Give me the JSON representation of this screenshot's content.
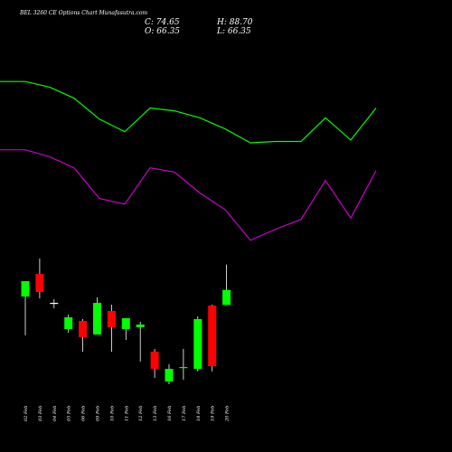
{
  "header": {
    "title": "BEL 3260 CE Options Chart Munafasutra.com",
    "close_label": "C: 74.65",
    "open_label": "O: 66.35",
    "high_label": "H: 88.70",
    "low_label": "L: 66.35"
  },
  "colors": {
    "background": "#000000",
    "up_candle": "#00ff00",
    "down_candle": "#ff0000",
    "wick": "#ffffff",
    "upper_band": "#00ff00",
    "lower_band": "#cc00cc"
  },
  "chart_data": {
    "type": "candlestick",
    "title": "BEL 3260 CE Options Chart Munafasutra.com",
    "categories": [
      "02 Feb",
      "03 Feb",
      "04 Feb",
      "05 Feb",
      "06 Feb",
      "09 Feb",
      "10 Feb",
      "11 Feb",
      "12 Feb",
      "13 Feb",
      "16 Feb",
      "17 Feb",
      "18 Feb",
      "19 Feb",
      "20 Feb"
    ],
    "candles": [
      {
        "date": "02 Feb",
        "open": "",
        "high": "",
        "low": "",
        "close": "",
        "direction": "up"
      },
      {
        "date": "03 Feb",
        "direction": "down"
      },
      {
        "date": "04 Feb",
        "direction": "doji"
      },
      {
        "date": "05 Feb",
        "direction": "up"
      },
      {
        "date": "06 Feb",
        "direction": "down"
      },
      {
        "date": "09 Feb",
        "direction": "up"
      },
      {
        "date": "10 Feb",
        "direction": "down"
      },
      {
        "date": "11 Feb",
        "direction": "up"
      },
      {
        "date": "12 Feb",
        "direction": "up"
      },
      {
        "date": "13 Feb",
        "direction": "down"
      },
      {
        "date": "16 Feb",
        "direction": "up"
      },
      {
        "date": "17 Feb",
        "direction": "up"
      },
      {
        "date": "18 Feb",
        "direction": "up"
      },
      {
        "date": "19 Feb",
        "direction": "down"
      },
      {
        "date": "20 Feb",
        "open": 66.35,
        "high": 88.7,
        "low": 66.35,
        "close": 74.65,
        "direction": "up"
      }
    ],
    "ohlc_scale": [
      {
        "o": 71.0,
        "h": 79.0,
        "l": 49.5,
        "c": 79.5
      },
      {
        "o": 83.5,
        "h": 92.0,
        "l": 70.0,
        "c": 73.5
      },
      {
        "o": 67.5,
        "h": 69.5,
        "l": 64.5,
        "c": 67.5
      },
      {
        "o": 53.0,
        "h": 61.0,
        "l": 51.0,
        "c": 59.5
      },
      {
        "o": 57.5,
        "h": 58.5,
        "l": 40.5,
        "c": 48.5
      },
      {
        "o": 50.0,
        "h": 70.5,
        "l": 50.0,
        "c": 67.5
      },
      {
        "o": 63.0,
        "h": 66.5,
        "l": 40.5,
        "c": 54.0
      },
      {
        "o": 53.0,
        "h": 59.0,
        "l": 47.0,
        "c": 59.0
      },
      {
        "o": 54.0,
        "h": 57.0,
        "l": 35.0,
        "c": 55.5
      },
      {
        "o": 40.5,
        "h": 42.0,
        "l": 26.0,
        "c": 31.0
      },
      {
        "o": 24.0,
        "h": 33.5,
        "l": 22.5,
        "c": 31.0
      },
      {
        "o": 32.0,
        "h": 42.0,
        "l": 25.0,
        "c": 32.0
      },
      {
        "o": 31.0,
        "h": 60.0,
        "l": 29.5,
        "c": 58.5
      },
      {
        "o": 66.0,
        "h": 66.5,
        "l": 29.5,
        "c": 32.5
      },
      {
        "o": 66.35,
        "h": 88.7,
        "l": 66.35,
        "c": 74.65
      }
    ],
    "upper_band": [
      188,
      188,
      180,
      164,
      134,
      116,
      150,
      146,
      136,
      120,
      100,
      102,
      102,
      136,
      104,
      150
    ],
    "lower_band": [
      90,
      90,
      80,
      64,
      20,
      12,
      64,
      58,
      28,
      4,
      -40,
      -24,
      -10,
      46,
      -8,
      60
    ],
    "ylim": [
      -60,
      200
    ],
    "legend": "none",
    "grid": false
  }
}
